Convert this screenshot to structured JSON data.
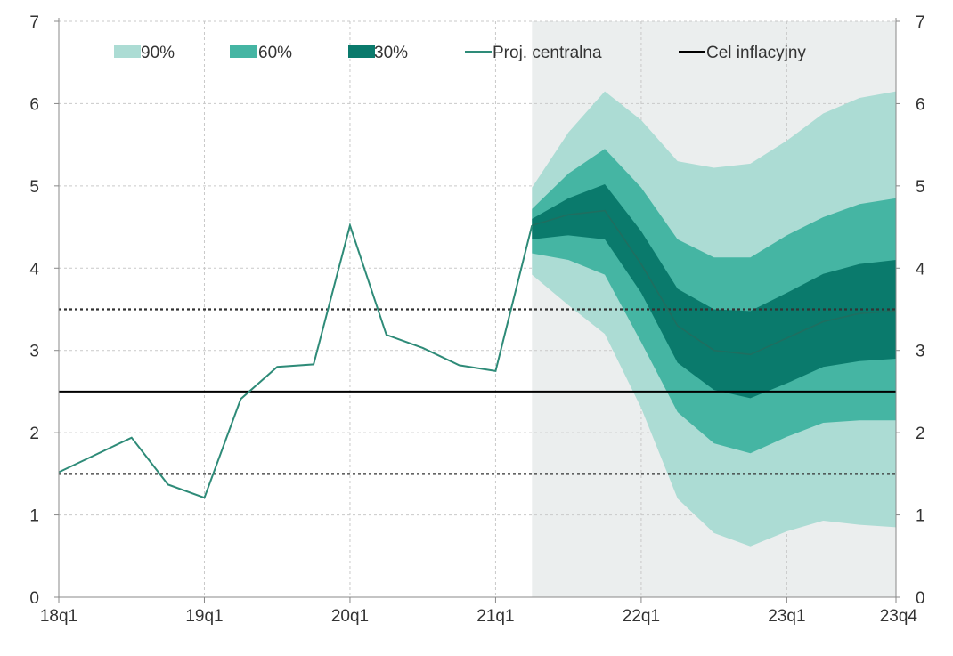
{
  "chart_data": {
    "type": "area",
    "x_ticks": [
      "18q1",
      "19q1",
      "20q1",
      "21q1",
      "22q1",
      "23q1",
      "23q4"
    ],
    "y_ticks": [
      0,
      1,
      2,
      3,
      4,
      5,
      6,
      7
    ],
    "ylim": [
      0,
      7
    ],
    "xlim": [
      "18q1",
      "23q4"
    ],
    "grid": true,
    "legend_position": "top",
    "projection_start": "21q2",
    "colors": {
      "band_90": "#acdcd4",
      "band_60": "#45b5a3",
      "band_30": "#0a7a6c",
      "central": "#2e8b78",
      "target": "#000000",
      "shading": "#ebeeee"
    },
    "legend": [
      {
        "key": "band_90",
        "label": "90%",
        "kind": "box"
      },
      {
        "key": "band_60",
        "label": "60%",
        "kind": "box"
      },
      {
        "key": "band_30",
        "label": "30%",
        "kind": "box"
      },
      {
        "key": "central",
        "label": "Proj. centralna",
        "kind": "line"
      },
      {
        "key": "target",
        "label": "Cel inflacyjny",
        "kind": "line"
      }
    ],
    "historical": {
      "x": [
        "18q1",
        "18q2",
        "18q3",
        "18q4",
        "19q1",
        "19q2",
        "19q3",
        "19q4",
        "20q1",
        "20q2",
        "20q3",
        "20q4",
        "21q1",
        "21q2"
      ],
      "values": [
        1.52,
        1.73,
        1.94,
        1.37,
        1.21,
        2.41,
        2.8,
        2.83,
        4.52,
        3.19,
        3.03,
        2.82,
        2.75,
        4.52
      ]
    },
    "projection_x": [
      "21q2",
      "21q3",
      "21q4",
      "22q1",
      "22q2",
      "22q3",
      "22q4",
      "23q1",
      "23q2",
      "23q3",
      "23q4"
    ],
    "central": [
      4.52,
      4.65,
      4.7,
      4.05,
      3.3,
      3.0,
      2.95,
      3.15,
      3.35,
      3.45,
      3.48
    ],
    "bands": {
      "band_90": {
        "upper": [
          4.98,
          5.65,
          6.15,
          5.8,
          5.3,
          5.22,
          5.27,
          5.55,
          5.88,
          6.07,
          6.15
        ],
        "lower": [
          3.92,
          3.55,
          3.2,
          2.3,
          1.2,
          0.78,
          0.62,
          0.8,
          0.93,
          0.88,
          0.85
        ]
      },
      "band_60": {
        "upper": [
          4.72,
          5.15,
          5.45,
          4.98,
          4.35,
          4.13,
          4.13,
          4.4,
          4.62,
          4.78,
          4.85
        ],
        "lower": [
          4.18,
          4.1,
          3.92,
          3.1,
          2.25,
          1.87,
          1.75,
          1.95,
          2.12,
          2.15,
          2.15
        ]
      },
      "band_30": {
        "upper": [
          4.6,
          4.85,
          5.02,
          4.45,
          3.75,
          3.5,
          3.48,
          3.7,
          3.93,
          4.05,
          4.1
        ],
        "lower": [
          4.35,
          4.4,
          4.35,
          3.7,
          2.85,
          2.52,
          2.42,
          2.6,
          2.8,
          2.87,
          2.9
        ]
      }
    },
    "target_line": 2.5,
    "tolerance_lines": [
      3.5,
      1.5
    ]
  }
}
